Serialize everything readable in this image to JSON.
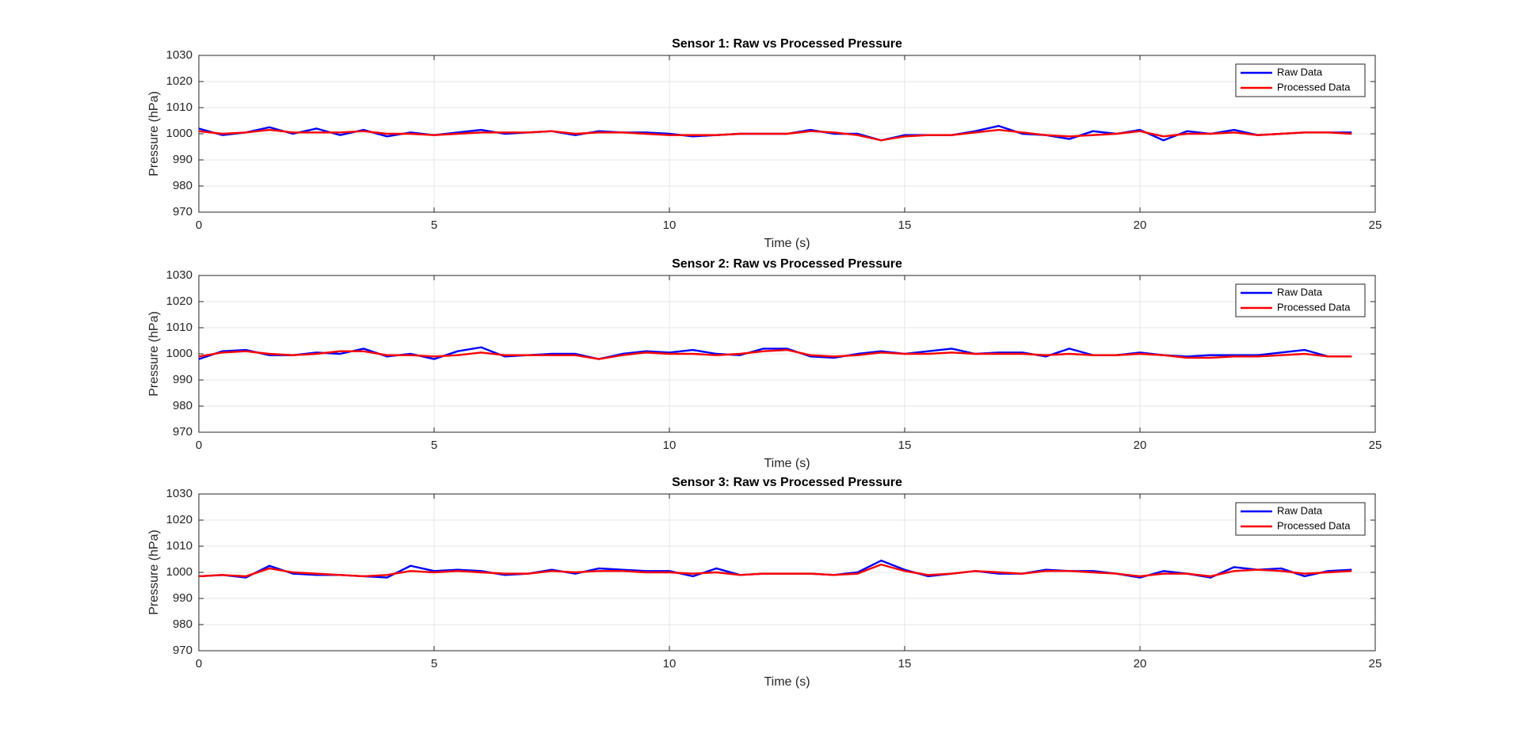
{
  "chart_data": [
    {
      "type": "line",
      "title": "Sensor 1: Raw vs Processed Pressure",
      "xlabel": "Time (s)",
      "ylabel": "Pressure (hPa)",
      "x": [
        0,
        0.5,
        1,
        1.5,
        2,
        2.5,
        3,
        3.5,
        4,
        4.5,
        5,
        5.5,
        6,
        6.5,
        7,
        7.5,
        8,
        8.5,
        9,
        9.5,
        10,
        10.5,
        11,
        11.5,
        12,
        12.5,
        13,
        13.5,
        14,
        14.5,
        15,
        15.5,
        16,
        16.5,
        17,
        17.5,
        18,
        18.5,
        19,
        19.5,
        20,
        20.5,
        21,
        21.5,
        22,
        22.5,
        23,
        23.5,
        24,
        24.5
      ],
      "series": [
        {
          "name": "Raw Data",
          "color": "#0000ff",
          "values": [
            1002,
            999.5,
            1000.5,
            1002.5,
            1000,
            1002,
            999.5,
            1001.5,
            999,
            1000.5,
            999.5,
            1000.5,
            1001.5,
            1000,
            1000.5,
            1001,
            999.5,
            1001,
            1000.5,
            1000.5,
            1000,
            999,
            999.5,
            1000,
            1000,
            1000,
            1001.5,
            1000,
            1000,
            997.5,
            999.5,
            999.5,
            999.5,
            1001,
            1003,
            1000,
            999.5,
            998,
            1001,
            1000,
            1001.5,
            997.5,
            1001,
            1000,
            1001.5,
            999.5,
            1000,
            1000.5,
            1000.5,
            1000.5
          ]
        },
        {
          "name": "Processed Data",
          "color": "#ff0000",
          "values": [
            1001,
            1000,
            1000.5,
            1001.5,
            1000.5,
            1000.5,
            1000.5,
            1001,
            1000,
            1000,
            999.5,
            1000,
            1000.5,
            1000.5,
            1000.5,
            1001,
            1000,
            1000.5,
            1000.5,
            1000,
            999.5,
            999.5,
            999.5,
            1000,
            1000,
            1000,
            1001,
            1000.5,
            999.5,
            997.5,
            999,
            999.5,
            999.5,
            1000.5,
            1001.5,
            1000.5,
            999.5,
            999,
            999.5,
            1000,
            1001,
            999,
            1000,
            1000,
            1000.5,
            999.5,
            1000,
            1000.5,
            1000.5,
            1000
          ]
        }
      ],
      "xlim": [
        0,
        25
      ],
      "ylim": [
        970,
        1030
      ],
      "xticks": [
        0,
        5,
        10,
        15,
        20,
        25
      ],
      "yticks": [
        970,
        980,
        990,
        1000,
        1010,
        1020,
        1030
      ],
      "grid": true,
      "legend": "northeast"
    },
    {
      "type": "line",
      "title": "Sensor 2: Raw vs Processed Pressure",
      "xlabel": "Time (s)",
      "ylabel": "Pressure (hPa)",
      "x": [
        0,
        0.5,
        1,
        1.5,
        2,
        2.5,
        3,
        3.5,
        4,
        4.5,
        5,
        5.5,
        6,
        6.5,
        7,
        7.5,
        8,
        8.5,
        9,
        9.5,
        10,
        10.5,
        11,
        11.5,
        12,
        12.5,
        13,
        13.5,
        14,
        14.5,
        15,
        15.5,
        16,
        16.5,
        17,
        17.5,
        18,
        18.5,
        19,
        19.5,
        20,
        20.5,
        21,
        21.5,
        22,
        22.5,
        23,
        23.5,
        24,
        24.5
      ],
      "series": [
        {
          "name": "Raw Data",
          "color": "#0000ff",
          "values": [
            998,
            1001,
            1001.5,
            999.5,
            999.5,
            1000.5,
            1000,
            1002,
            999,
            1000,
            998,
            1001,
            1002.5,
            999,
            999.5,
            1000,
            1000,
            998,
            1000,
            1001,
            1000.5,
            1001.5,
            1000,
            999.5,
            1002,
            1002,
            999,
            998.5,
            1000,
            1001,
            1000,
            1001,
            1002,
            1000,
            1000.5,
            1000.5,
            999,
            1002,
            999.5,
            999.5,
            1000.5,
            999.5,
            999,
            999.5,
            999.5,
            999.5,
            1000.5,
            1001.5,
            999,
            999
          ]
        },
        {
          "name": "Processed Data",
          "color": "#ff0000",
          "values": [
            999,
            1000.5,
            1001,
            1000,
            999.5,
            1000,
            1001,
            1001,
            999.5,
            999.5,
            999,
            999.5,
            1000.5,
            999.5,
            999.5,
            999.5,
            999.5,
            998,
            999.5,
            1000.5,
            1000,
            1000,
            999.5,
            1000,
            1001,
            1001.5,
            999.5,
            999,
            999.5,
            1000.5,
            1000,
            1000,
            1000.5,
            1000,
            1000,
            1000,
            999.5,
            1000,
            999.5,
            999.5,
            1000,
            999.5,
            998.5,
            998.5,
            999,
            999,
            999.5,
            1000,
            999,
            999
          ]
        }
      ],
      "xlim": [
        0,
        25
      ],
      "ylim": [
        970,
        1030
      ],
      "xticks": [
        0,
        5,
        10,
        15,
        20,
        25
      ],
      "yticks": [
        970,
        980,
        990,
        1000,
        1010,
        1020,
        1030
      ],
      "grid": true,
      "legend": "northeast"
    },
    {
      "type": "line",
      "title": "Sensor 3: Raw vs Processed Pressure",
      "xlabel": "Time (s)",
      "ylabel": "Pressure (hPa)",
      "x": [
        0,
        0.5,
        1,
        1.5,
        2,
        2.5,
        3,
        3.5,
        4,
        4.5,
        5,
        5.5,
        6,
        6.5,
        7,
        7.5,
        8,
        8.5,
        9,
        9.5,
        10,
        10.5,
        11,
        11.5,
        12,
        12.5,
        13,
        13.5,
        14,
        14.5,
        15,
        15.5,
        16,
        16.5,
        17,
        17.5,
        18,
        18.5,
        19,
        19.5,
        20,
        20.5,
        21,
        21.5,
        22,
        22.5,
        23,
        23.5,
        24,
        24.5
      ],
      "series": [
        {
          "name": "Raw Data",
          "color": "#0000ff",
          "values": [
            998.5,
            999,
            998,
            1002.5,
            999.5,
            999,
            999,
            998.5,
            998,
            1002.5,
            1000.5,
            1001,
            1000.5,
            999,
            999.5,
            1001,
            999.5,
            1001.5,
            1001,
            1000.5,
            1000.5,
            998.5,
            1001.5,
            999,
            999.5,
            999.5,
            999.5,
            999,
            1000,
            1004.5,
            1001,
            998.5,
            999.5,
            1000.5,
            999.5,
            999.5,
            1001,
            1000.5,
            1000.5,
            999.5,
            998,
            1000.5,
            999.5,
            998,
            1002,
            1001,
            1001.5,
            998.5,
            1000.5,
            1001
          ]
        },
        {
          "name": "Processed Data",
          "color": "#ff0000",
          "values": [
            998.5,
            999,
            998.5,
            1001.5,
            1000,
            999.5,
            999,
            998.5,
            999,
            1000.5,
            1000,
            1000.5,
            1000,
            999.5,
            999.5,
            1000.5,
            1000,
            1000.5,
            1000.5,
            1000,
            1000,
            999.5,
            1000,
            999,
            999.5,
            999.5,
            999.5,
            999,
            999.5,
            1003,
            1000.5,
            999,
            999.5,
            1000.5,
            1000,
            999.5,
            1000.5,
            1000.5,
            1000,
            999.5,
            998.5,
            999.5,
            999.5,
            998.5,
            1000.5,
            1001,
            1000.5,
            999.5,
            1000,
            1000.5
          ]
        }
      ],
      "xlim": [
        0,
        25
      ],
      "ylim": [
        970,
        1030
      ],
      "xticks": [
        0,
        5,
        10,
        15,
        20,
        25
      ],
      "yticks": [
        970,
        980,
        990,
        1000,
        1010,
        1020,
        1030
      ],
      "grid": true,
      "legend": "northeast"
    }
  ]
}
